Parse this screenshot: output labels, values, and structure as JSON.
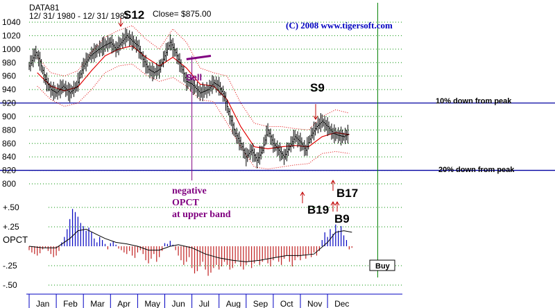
{
  "chart_data": {
    "type": "line",
    "header": {
      "symbol": "DATA81",
      "date_range": "12/ 31/ 1980  -  12/ 31/ 1981",
      "close_label": "Close= $875.00",
      "copyright": "(C) 2008   www.tigersoft.com"
    },
    "price_axis": {
      "ylim": [
        800,
        1040
      ],
      "ticks": [
        "1040",
        "1020",
        "1000",
        "980",
        "960",
        "940",
        "920",
        "900",
        "880",
        "860",
        "840",
        "820",
        "800"
      ]
    },
    "indicator_axis": {
      "label": "OPCT",
      "ylim": [
        -0.5,
        0.5
      ],
      "ticks": [
        "+.50",
        "+.25",
        "-.25",
        "-.50"
      ]
    },
    "months": [
      "Jan",
      "Feb",
      "Mar",
      "Apr",
      "May",
      "Jun",
      "Jul",
      "Aug",
      "Sep",
      "Oct",
      "Nov",
      "Dec"
    ],
    "reference_lines": [
      {
        "label": "10% down from peak",
        "value": 920
      },
      {
        "label": "20% down from peak",
        "value": 820
      }
    ],
    "signals": [
      {
        "label": "S12",
        "x": 3.1,
        "price": 1032
      },
      {
        "label": "S9",
        "x": 10.0,
        "price": 926
      },
      {
        "label": "B19",
        "x": 9.0,
        "price": 790
      },
      {
        "label": "B17",
        "x": 9.9,
        "price": 800
      },
      {
        "label": "B9",
        "x": 10.1,
        "price": 782
      }
    ],
    "annotations": {
      "sell": "Sell",
      "negative_opct": [
        "negative",
        "OPCT",
        "at upper band"
      ],
      "buy": "Buy"
    },
    "price_series": [
      {
        "x": 0.0,
        "y": 975
      },
      {
        "x": 0.25,
        "y": 995
      },
      {
        "x": 0.4,
        "y": 982
      },
      {
        "x": 0.6,
        "y": 955
      },
      {
        "x": 0.8,
        "y": 940
      },
      {
        "x": 1.0,
        "y": 935
      },
      {
        "x": 1.25,
        "y": 945
      },
      {
        "x": 1.5,
        "y": 935
      },
      {
        "x": 1.75,
        "y": 945
      },
      {
        "x": 2.0,
        "y": 975
      },
      {
        "x": 2.25,
        "y": 990
      },
      {
        "x": 2.5,
        "y": 998
      },
      {
        "x": 2.75,
        "y": 1005
      },
      {
        "x": 3.0,
        "y": 1010
      },
      {
        "x": 3.2,
        "y": 1000
      },
      {
        "x": 3.4,
        "y": 1010
      },
      {
        "x": 3.6,
        "y": 1020
      },
      {
        "x": 3.8,
        "y": 1012
      },
      {
        "x": 4.0,
        "y": 1005
      },
      {
        "x": 4.2,
        "y": 985
      },
      {
        "x": 4.4,
        "y": 970
      },
      {
        "x": 4.6,
        "y": 965
      },
      {
        "x": 4.8,
        "y": 970
      },
      {
        "x": 5.0,
        "y": 990
      },
      {
        "x": 5.2,
        "y": 1010
      },
      {
        "x": 5.4,
        "y": 995
      },
      {
        "x": 5.6,
        "y": 975
      },
      {
        "x": 5.8,
        "y": 952
      },
      {
        "x": 6.0,
        "y": 948
      },
      {
        "x": 6.3,
        "y": 935
      },
      {
        "x": 6.6,
        "y": 940
      },
      {
        "x": 6.8,
        "y": 950
      },
      {
        "x": 7.0,
        "y": 945
      },
      {
        "x": 7.2,
        "y": 930
      },
      {
        "x": 7.4,
        "y": 900
      },
      {
        "x": 7.6,
        "y": 875
      },
      {
        "x": 7.8,
        "y": 860
      },
      {
        "x": 8.0,
        "y": 840
      },
      {
        "x": 8.2,
        "y": 850
      },
      {
        "x": 8.4,
        "y": 835
      },
      {
        "x": 8.6,
        "y": 850
      },
      {
        "x": 8.8,
        "y": 880
      },
      {
        "x": 9.0,
        "y": 860
      },
      {
        "x": 9.2,
        "y": 850
      },
      {
        "x": 9.4,
        "y": 840
      },
      {
        "x": 9.6,
        "y": 855
      },
      {
        "x": 9.8,
        "y": 870
      },
      {
        "x": 10.0,
        "y": 862
      },
      {
        "x": 10.2,
        "y": 850
      },
      {
        "x": 10.4,
        "y": 872
      },
      {
        "x": 10.6,
        "y": 885
      },
      {
        "x": 10.8,
        "y": 893
      },
      {
        "x": 11.0,
        "y": 885
      },
      {
        "x": 11.2,
        "y": 875
      },
      {
        "x": 11.4,
        "y": 872
      },
      {
        "x": 11.6,
        "y": 870
      },
      {
        "x": 11.8,
        "y": 875
      }
    ],
    "moving_average": [
      {
        "x": 0.3,
        "y": 965
      },
      {
        "x": 0.8,
        "y": 945
      },
      {
        "x": 1.3,
        "y": 938
      },
      {
        "x": 1.8,
        "y": 944
      },
      {
        "x": 2.3,
        "y": 968
      },
      {
        "x": 2.8,
        "y": 990
      },
      {
        "x": 3.3,
        "y": 1000
      },
      {
        "x": 3.8,
        "y": 1005
      },
      {
        "x": 4.3,
        "y": 988
      },
      {
        "x": 4.8,
        "y": 975
      },
      {
        "x": 5.3,
        "y": 988
      },
      {
        "x": 5.8,
        "y": 972
      },
      {
        "x": 6.3,
        "y": 948
      },
      {
        "x": 6.8,
        "y": 945
      },
      {
        "x": 7.3,
        "y": 925
      },
      {
        "x": 7.8,
        "y": 885
      },
      {
        "x": 8.3,
        "y": 855
      },
      {
        "x": 8.8,
        "y": 852
      },
      {
        "x": 9.3,
        "y": 855
      },
      {
        "x": 9.8,
        "y": 857
      },
      {
        "x": 10.3,
        "y": 855
      },
      {
        "x": 10.8,
        "y": 870
      },
      {
        "x": 11.3,
        "y": 876
      },
      {
        "x": 11.8,
        "y": 873
      }
    ],
    "upper_band": [
      {
        "x": 0.3,
        "y": 988
      },
      {
        "x": 0.8,
        "y": 965
      },
      {
        "x": 1.3,
        "y": 960
      },
      {
        "x": 1.8,
        "y": 968
      },
      {
        "x": 2.3,
        "y": 995
      },
      {
        "x": 2.8,
        "y": 1018
      },
      {
        "x": 3.3,
        "y": 1028
      },
      {
        "x": 3.8,
        "y": 1035
      },
      {
        "x": 4.3,
        "y": 1015
      },
      {
        "x": 4.8,
        "y": 1000
      },
      {
        "x": 5.3,
        "y": 1030
      },
      {
        "x": 5.8,
        "y": 1010
      },
      {
        "x": 6.3,
        "y": 972
      },
      {
        "x": 6.8,
        "y": 965
      },
      {
        "x": 7.3,
        "y": 960
      },
      {
        "x": 7.8,
        "y": 920
      },
      {
        "x": 8.3,
        "y": 890
      },
      {
        "x": 8.8,
        "y": 885
      },
      {
        "x": 9.3,
        "y": 885
      },
      {
        "x": 9.8,
        "y": 882
      },
      {
        "x": 10.3,
        "y": 880
      },
      {
        "x": 10.8,
        "y": 900
      },
      {
        "x": 11.3,
        "y": 910
      },
      {
        "x": 11.8,
        "y": 905
      }
    ],
    "lower_band": [
      {
        "x": 0.3,
        "y": 945
      },
      {
        "x": 0.8,
        "y": 925
      },
      {
        "x": 1.3,
        "y": 915
      },
      {
        "x": 1.8,
        "y": 920
      },
      {
        "x": 2.3,
        "y": 940
      },
      {
        "x": 2.8,
        "y": 965
      },
      {
        "x": 3.3,
        "y": 975
      },
      {
        "x": 3.8,
        "y": 978
      },
      {
        "x": 4.3,
        "y": 962
      },
      {
        "x": 4.8,
        "y": 952
      },
      {
        "x": 5.3,
        "y": 958
      },
      {
        "x": 5.8,
        "y": 945
      },
      {
        "x": 6.3,
        "y": 925
      },
      {
        "x": 6.8,
        "y": 922
      },
      {
        "x": 7.3,
        "y": 890
      },
      {
        "x": 7.8,
        "y": 855
      },
      {
        "x": 8.3,
        "y": 825
      },
      {
        "x": 8.8,
        "y": 822
      },
      {
        "x": 9.3,
        "y": 825
      },
      {
        "x": 9.8,
        "y": 828
      },
      {
        "x": 10.3,
        "y": 830
      },
      {
        "x": 10.8,
        "y": 845
      },
      {
        "x": 11.3,
        "y": 848
      },
      {
        "x": 11.8,
        "y": 845
      }
    ],
    "opct_line": [
      {
        "x": 0.0,
        "y": 0.0
      },
      {
        "x": 0.5,
        "y": -0.02
      },
      {
        "x": 1.0,
        "y": -0.02
      },
      {
        "x": 1.5,
        "y": 0.1
      },
      {
        "x": 1.8,
        "y": 0.2
      },
      {
        "x": 2.1,
        "y": 0.22
      },
      {
        "x": 2.5,
        "y": 0.15
      },
      {
        "x": 2.8,
        "y": 0.1
      },
      {
        "x": 3.2,
        "y": 0.05
      },
      {
        "x": 3.6,
        "y": 0.03
      },
      {
        "x": 4.0,
        "y": 0.0
      },
      {
        "x": 4.4,
        "y": -0.05
      },
      {
        "x": 4.8,
        "y": -0.05
      },
      {
        "x": 5.2,
        "y": 0.0
      },
      {
        "x": 5.5,
        "y": 0.02
      },
      {
        "x": 6.0,
        "y": -0.02
      },
      {
        "x": 6.5,
        "y": -0.1
      },
      {
        "x": 7.0,
        "y": -0.15
      },
      {
        "x": 7.5,
        "y": -0.18
      },
      {
        "x": 8.0,
        "y": -0.2
      },
      {
        "x": 8.5,
        "y": -0.18
      },
      {
        "x": 9.0,
        "y": -0.15
      },
      {
        "x": 9.5,
        "y": -0.12
      },
      {
        "x": 10.0,
        "y": -0.12
      },
      {
        "x": 10.5,
        "y": -0.1
      },
      {
        "x": 11.0,
        "y": 0.05
      },
      {
        "x": 11.3,
        "y": 0.18
      },
      {
        "x": 11.6,
        "y": 0.2
      },
      {
        "x": 11.9,
        "y": 0.18
      }
    ],
    "opct_bars": [
      {
        "x": 0.0,
        "v": -0.05
      },
      {
        "x": 0.1,
        "v": -0.08
      },
      {
        "x": 0.2,
        "v": -0.1
      },
      {
        "x": 0.3,
        "v": -0.12
      },
      {
        "x": 0.4,
        "v": -0.09
      },
      {
        "x": 0.5,
        "v": -0.04
      },
      {
        "x": 0.6,
        "v": -0.02
      },
      {
        "x": 0.7,
        "v": -0.06
      },
      {
        "x": 0.8,
        "v": -0.1
      },
      {
        "x": 0.9,
        "v": -0.14
      },
      {
        "x": 1.0,
        "v": -0.12
      },
      {
        "x": 1.1,
        "v": -0.06
      },
      {
        "x": 1.2,
        "v": 0.05
      },
      {
        "x": 1.3,
        "v": 0.12
      },
      {
        "x": 1.4,
        "v": 0.22
      },
      {
        "x": 1.5,
        "v": 0.35
      },
      {
        "x": 1.6,
        "v": 0.48
      },
      {
        "x": 1.7,
        "v": 0.44
      },
      {
        "x": 1.8,
        "v": 0.38
      },
      {
        "x": 1.9,
        "v": 0.3
      },
      {
        "x": 2.0,
        "v": 0.26
      },
      {
        "x": 2.1,
        "v": 0.2
      },
      {
        "x": 2.2,
        "v": 0.24
      },
      {
        "x": 2.3,
        "v": 0.18
      },
      {
        "x": 2.4,
        "v": 0.1
      },
      {
        "x": 2.5,
        "v": 0.05
      },
      {
        "x": 2.6,
        "v": 0.12
      },
      {
        "x": 2.7,
        "v": 0.08
      },
      {
        "x": 2.8,
        "v": 0.03
      },
      {
        "x": 2.9,
        "v": -0.04
      },
      {
        "x": 3.0,
        "v": 0.04
      },
      {
        "x": 3.1,
        "v": 0.06
      },
      {
        "x": 3.2,
        "v": 0.02
      },
      {
        "x": 3.3,
        "v": -0.03
      },
      {
        "x": 3.4,
        "v": -0.05
      },
      {
        "x": 3.5,
        "v": -0.08
      },
      {
        "x": 3.6,
        "v": -0.1
      },
      {
        "x": 3.7,
        "v": -0.06
      },
      {
        "x": 3.8,
        "v": -0.12
      },
      {
        "x": 3.9,
        "v": -0.15
      },
      {
        "x": 4.0,
        "v": -0.08
      },
      {
        "x": 4.1,
        "v": -0.05
      },
      {
        "x": 4.2,
        "v": -0.1
      },
      {
        "x": 4.3,
        "v": -0.18
      },
      {
        "x": 4.4,
        "v": -0.22
      },
      {
        "x": 4.5,
        "v": -0.16
      },
      {
        "x": 4.6,
        "v": -0.1
      },
      {
        "x": 4.7,
        "v": -0.2
      },
      {
        "x": 4.8,
        "v": -0.14
      },
      {
        "x": 4.9,
        "v": -0.06
      },
      {
        "x": 5.0,
        "v": 0.04
      },
      {
        "x": 5.1,
        "v": 0.03
      },
      {
        "x": 5.2,
        "v": 0.07
      },
      {
        "x": 5.3,
        "v": 0.02
      },
      {
        "x": 5.4,
        "v": -0.05
      },
      {
        "x": 5.5,
        "v": -0.12
      },
      {
        "x": 5.6,
        "v": -0.18
      },
      {
        "x": 5.7,
        "v": -0.24
      },
      {
        "x": 5.8,
        "v": -0.2
      },
      {
        "x": 5.9,
        "v": -0.14
      },
      {
        "x": 6.0,
        "v": -0.28
      },
      {
        "x": 6.1,
        "v": -0.35
      },
      {
        "x": 6.2,
        "v": -0.32
      },
      {
        "x": 6.3,
        "v": -0.26
      },
      {
        "x": 6.4,
        "v": -0.2
      },
      {
        "x": 6.5,
        "v": -0.3
      },
      {
        "x": 6.6,
        "v": -0.38
      },
      {
        "x": 6.7,
        "v": -0.34
      },
      {
        "x": 6.8,
        "v": -0.28
      },
      {
        "x": 6.9,
        "v": -0.24
      },
      {
        "x": 7.0,
        "v": -0.3
      },
      {
        "x": 7.1,
        "v": -0.26
      },
      {
        "x": 7.2,
        "v": -0.2
      },
      {
        "x": 7.3,
        "v": -0.24
      },
      {
        "x": 7.4,
        "v": -0.3
      },
      {
        "x": 7.5,
        "v": -0.28
      },
      {
        "x": 7.6,
        "v": -0.22
      },
      {
        "x": 7.7,
        "v": -0.18
      },
      {
        "x": 7.8,
        "v": -0.26
      },
      {
        "x": 7.9,
        "v": -0.3
      },
      {
        "x": 8.0,
        "v": -0.24
      },
      {
        "x": 8.1,
        "v": -0.2
      },
      {
        "x": 8.2,
        "v": -0.28
      },
      {
        "x": 8.3,
        "v": -0.22
      },
      {
        "x": 8.4,
        "v": -0.18
      },
      {
        "x": 8.5,
        "v": -0.24
      },
      {
        "x": 8.6,
        "v": -0.2
      },
      {
        "x": 8.7,
        "v": -0.16
      },
      {
        "x": 8.8,
        "v": -0.22
      },
      {
        "x": 8.9,
        "v": -0.26
      },
      {
        "x": 9.0,
        "v": -0.18
      },
      {
        "x": 9.1,
        "v": -0.14
      },
      {
        "x": 9.2,
        "v": -0.2
      },
      {
        "x": 9.3,
        "v": -0.24
      },
      {
        "x": 9.4,
        "v": -0.16
      },
      {
        "x": 9.5,
        "v": -0.12
      },
      {
        "x": 9.6,
        "v": -0.2
      },
      {
        "x": 9.7,
        "v": -0.26
      },
      {
        "x": 9.8,
        "v": -0.18
      },
      {
        "x": 9.9,
        "v": -0.14
      },
      {
        "x": 10.0,
        "v": -0.18
      },
      {
        "x": 10.1,
        "v": -0.12
      },
      {
        "x": 10.2,
        "v": -0.16
      },
      {
        "x": 10.3,
        "v": -0.1
      },
      {
        "x": 10.4,
        "v": -0.14
      },
      {
        "x": 10.5,
        "v": -0.08
      },
      {
        "x": 10.6,
        "v": -0.12
      },
      {
        "x": 10.7,
        "v": -0.06
      },
      {
        "x": 10.8,
        "v": 0.08
      },
      {
        "x": 10.9,
        "v": 0.18
      },
      {
        "x": 11.0,
        "v": 0.12
      },
      {
        "x": 11.1,
        "v": 0.22
      },
      {
        "x": 11.2,
        "v": 0.16
      },
      {
        "x": 11.3,
        "v": 0.28
      },
      {
        "x": 11.4,
        "v": 0.2
      },
      {
        "x": 11.5,
        "v": 0.26
      },
      {
        "x": 11.6,
        "v": 0.14
      },
      {
        "x": 11.7,
        "v": 0.08
      },
      {
        "x": 11.8,
        "v": -0.04
      },
      {
        "x": 11.9,
        "v": -0.02
      }
    ],
    "colors": {
      "price_bars": "#000000",
      "moving_average": "#e00000",
      "bands": "#e00000",
      "reference_lines": "#0000a0",
      "signal_annotation": "#800080",
      "opct_positive": "#0000c0",
      "opct_negative": "#c02020",
      "buy_marker_line": "#008000",
      "copyright": "#0000c0",
      "grid": "#009000"
    }
  }
}
